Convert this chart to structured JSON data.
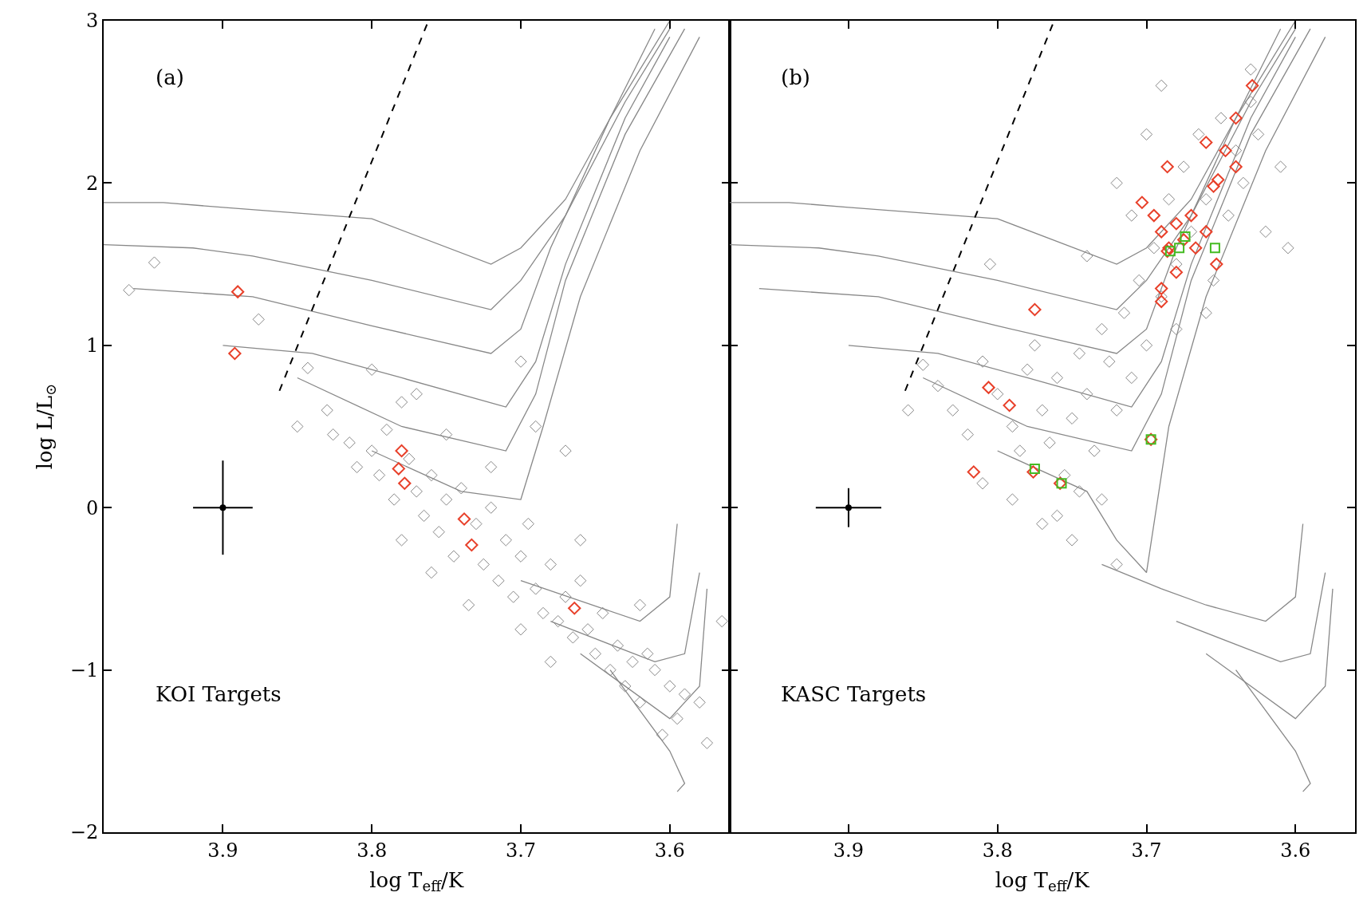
{
  "chart_data": [
    {
      "type": "scatter",
      "xlabel": "log T$_{eff}$/K",
      "ylabel": "log L/L$_{⊙}$",
      "xlim": [
        3.98,
        3.56
      ],
      "ylim": [
        -2,
        3
      ],
      "xticks": [
        3.9,
        3.8,
        3.7,
        3.6
      ],
      "yticks": [
        -2,
        -1,
        0,
        1,
        2,
        3
      ],
      "annotations": [
        "(a)",
        "KOI Targets"
      ],
      "series": [
        {
          "type": "line",
          "color": "#888888",
          "x": [
            3.98,
            3.94,
            3.9,
            3.8,
            3.72,
            3.7,
            3.67,
            3.64,
            3.6
          ],
          "values": [
            1.88,
            1.88,
            1.85,
            1.78,
            1.5,
            1.6,
            1.9,
            2.4,
            3.0
          ]
        },
        {
          "type": "line",
          "color": "#888888",
          "x": [
            3.98,
            3.92,
            3.88,
            3.8,
            3.72,
            3.7,
            3.67,
            3.63,
            3.6
          ],
          "values": [
            1.62,
            1.6,
            1.55,
            1.4,
            1.22,
            1.4,
            1.8,
            2.5,
            2.95
          ]
        },
        {
          "type": "line",
          "color": "#888888",
          "x": [
            3.96,
            3.88,
            3.8,
            3.72,
            3.7,
            3.68,
            3.64,
            3.61
          ],
          "values": [
            1.35,
            1.3,
            1.12,
            0.95,
            1.1,
            1.6,
            2.4,
            2.95
          ]
        },
        {
          "type": "line",
          "color": "#888888",
          "x": [
            3.9,
            3.84,
            3.78,
            3.71,
            3.69,
            3.67,
            3.63,
            3.6
          ],
          "values": [
            1.0,
            0.95,
            0.8,
            0.62,
            0.9,
            1.5,
            2.4,
            2.9
          ]
        },
        {
          "type": "line",
          "color": "#888888",
          "x": [
            3.85,
            3.78,
            3.71,
            3.69,
            3.67,
            3.63,
            3.59
          ],
          "values": [
            0.8,
            0.5,
            0.35,
            0.7,
            1.4,
            2.3,
            2.95
          ]
        },
        {
          "type": "line",
          "color": "#888888",
          "x": [
            3.8,
            3.74,
            3.7,
            3.685,
            3.66,
            3.62,
            3.58
          ],
          "values": [
            0.35,
            0.1,
            0.05,
            0.5,
            1.3,
            2.2,
            2.9
          ]
        },
        {
          "type": "line",
          "color": "#888888",
          "x": [
            3.7,
            3.62,
            3.6,
            3.595
          ],
          "values": [
            -0.45,
            -0.7,
            -0.55,
            -0.1
          ]
        },
        {
          "type": "line",
          "color": "#888888",
          "x": [
            3.68,
            3.61,
            3.59,
            3.58
          ],
          "values": [
            -0.7,
            -0.95,
            -0.9,
            -0.4
          ]
        },
        {
          "type": "line",
          "color": "#888888",
          "x": [
            3.66,
            3.6,
            3.58,
            3.575
          ],
          "values": [
            -0.9,
            -1.3,
            -1.1,
            -0.5
          ]
        },
        {
          "type": "line",
          "color": "#888888",
          "x": [
            3.64,
            3.6,
            3.59,
            3.595
          ],
          "values": [
            -1.0,
            -1.5,
            -1.7,
            -1.75
          ]
        },
        {
          "type": "line",
          "color": "#000000",
          "line_style": "dashed",
          "x": [
            3.862,
            3.762
          ],
          "values": [
            0.72,
            3.0
          ]
        },
        {
          "type": "scatter",
          "color": "#000000",
          "marker": "none",
          "x": [
            3.9
          ],
          "values": [
            0
          ],
          "errors": [
            0.29
          ],
          "xerrors": [
            0.02
          ]
        },
        {
          "type": "scatter",
          "color": "#888888",
          "marker": "diamond",
          "x": [
            3.963,
            3.946,
            3.876,
            3.843,
            3.83,
            3.826,
            3.815,
            3.81,
            3.8,
            3.79,
            3.795,
            3.785,
            3.775,
            3.77,
            3.765,
            3.76,
            3.755,
            3.75,
            3.745,
            3.74,
            3.73,
            3.725,
            3.72,
            3.715,
            3.71,
            3.705,
            3.7,
            3.695,
            3.69,
            3.685,
            3.68,
            3.675,
            3.67,
            3.665,
            3.66,
            3.655,
            3.65,
            3.645,
            3.64,
            3.635,
            3.63,
            3.625,
            3.62,
            3.615,
            3.61,
            3.6,
            3.595,
            3.59,
            3.58,
            3.575,
            3.565,
            3.8,
            3.78,
            3.77,
            3.75,
            3.72,
            3.7,
            3.69,
            3.67,
            3.735,
            3.76,
            3.66,
            3.7,
            3.62,
            3.78,
            3.85,
            3.68,
            3.605
          ],
          "values": [
            1.34,
            1.51,
            1.16,
            0.86,
            0.6,
            0.45,
            0.4,
            0.25,
            0.35,
            0.48,
            0.2,
            0.05,
            0.3,
            0.1,
            -0.05,
            0.2,
            -0.15,
            0.05,
            -0.3,
            0.12,
            -0.1,
            -0.35,
            0.0,
            -0.45,
            -0.2,
            -0.55,
            -0.3,
            -0.1,
            -0.5,
            -0.65,
            -0.35,
            -0.7,
            -0.55,
            -0.8,
            -0.45,
            -0.75,
            -0.9,
            -0.65,
            -1.0,
            -0.85,
            -1.1,
            -0.95,
            -1.2,
            -0.9,
            -1.0,
            -1.1,
            -1.3,
            -1.15,
            -1.2,
            -1.45,
            -0.7,
            0.85,
            0.65,
            0.7,
            0.45,
            0.25,
            0.9,
            0.5,
            0.35,
            -0.6,
            -0.4,
            -0.2,
            -0.75,
            -0.6,
            -0.2,
            0.5,
            -0.95,
            -1.4
          ]
        },
        {
          "type": "scatter",
          "color": "#e8402a",
          "marker": "diamond",
          "x": [
            3.89,
            3.892,
            3.78,
            3.782,
            3.738,
            3.733,
            3.664
          ],
          "values": [
            1.33,
            0.95,
            0.35,
            0.24,
            -0.07,
            -0.23,
            -0.62
          ]
        },
        {
          "type": "scatter",
          "color": "#e8402a",
          "marker": "diamond",
          "x": [
            3.778
          ],
          "values": [
            0.15
          ]
        }
      ]
    },
    {
      "type": "scatter",
      "xlabel": "log T$_{eff}$/K",
      "xlim": [
        3.98,
        3.56
      ],
      "ylim": [
        -2,
        3
      ],
      "xticks": [
        3.9,
        3.8,
        3.7,
        3.6
      ],
      "yticks": [
        -2,
        -1,
        0,
        1,
        2,
        3
      ],
      "tick_labels": "x",
      "annotations": [
        "(b)",
        "KASC Targets"
      ],
      "series": [
        {
          "type": "line",
          "color": "#888888",
          "x": [
            3.98,
            3.94,
            3.9,
            3.8,
            3.72,
            3.7,
            3.67,
            3.64,
            3.6
          ],
          "values": [
            1.88,
            1.88,
            1.85,
            1.78,
            1.5,
            1.6,
            1.9,
            2.4,
            3.0
          ]
        },
        {
          "type": "line",
          "color": "#888888",
          "x": [
            3.98,
            3.92,
            3.88,
            3.8,
            3.72,
            3.7,
            3.67,
            3.63,
            3.6
          ],
          "values": [
            1.62,
            1.6,
            1.55,
            1.4,
            1.22,
            1.4,
            1.8,
            2.5,
            2.95
          ]
        },
        {
          "type": "line",
          "color": "#888888",
          "x": [
            3.96,
            3.88,
            3.8,
            3.72,
            3.7,
            3.68,
            3.64,
            3.61
          ],
          "values": [
            1.35,
            1.3,
            1.12,
            0.95,
            1.1,
            1.6,
            2.4,
            2.95
          ]
        },
        {
          "type": "line",
          "color": "#888888",
          "x": [
            3.9,
            3.84,
            3.78,
            3.71,
            3.69,
            3.67,
            3.63,
            3.6
          ],
          "values": [
            1.0,
            0.95,
            0.8,
            0.62,
            0.9,
            1.5,
            2.4,
            2.9
          ]
        },
        {
          "type": "line",
          "color": "#888888",
          "x": [
            3.85,
            3.78,
            3.71,
            3.69,
            3.67,
            3.63,
            3.59
          ],
          "values": [
            0.8,
            0.5,
            0.35,
            0.7,
            1.4,
            2.3,
            2.95
          ]
        },
        {
          "type": "line",
          "color": "#888888",
          "x": [
            3.8,
            3.74,
            3.72,
            3.7,
            3.685,
            3.66,
            3.62,
            3.58
          ],
          "values": [
            0.35,
            0.1,
            -0.2,
            -0.4,
            0.5,
            1.3,
            2.2,
            2.9
          ]
        },
        {
          "type": "line",
          "color": "#888888",
          "x": [
            3.73,
            3.69,
            3.66,
            3.62,
            3.6,
            3.595
          ],
          "values": [
            -0.35,
            -0.5,
            -0.6,
            -0.7,
            -0.55,
            -0.1
          ]
        },
        {
          "type": "line",
          "color": "#888888",
          "x": [
            3.68,
            3.61,
            3.59,
            3.58
          ],
          "values": [
            -0.7,
            -0.95,
            -0.9,
            -0.4
          ]
        },
        {
          "type": "line",
          "color": "#888888",
          "x": [
            3.66,
            3.6,
            3.58,
            3.575
          ],
          "values": [
            -0.9,
            -1.3,
            -1.1,
            -0.5
          ]
        },
        {
          "type": "line",
          "color": "#888888",
          "x": [
            3.64,
            3.6,
            3.59,
            3.595
          ],
          "values": [
            -1.0,
            -1.5,
            -1.7,
            -1.75
          ]
        },
        {
          "type": "line",
          "color": "#000000",
          "line_style": "dashed",
          "x": [
            3.862,
            3.762
          ],
          "values": [
            0.72,
            3.0
          ]
        },
        {
          "type": "scatter",
          "color": "#000000",
          "marker": "none",
          "x": [
            3.9
          ],
          "values": [
            0
          ],
          "errors": [
            0.12
          ],
          "xerrors": [
            0.022
          ]
        },
        {
          "type": "scatter",
          "color": "#888888",
          "marker": "diamond",
          "x": [
            3.85,
            3.84,
            3.83,
            3.82,
            3.81,
            3.8,
            3.79,
            3.785,
            3.78,
            3.775,
            3.77,
            3.765,
            3.76,
            3.755,
            3.75,
            3.745,
            3.74,
            3.735,
            3.73,
            3.725,
            3.72,
            3.715,
            3.71,
            3.705,
            3.7,
            3.695,
            3.69,
            3.685,
            3.68,
            3.675,
            3.67,
            3.665,
            3.66,
            3.655,
            3.65,
            3.645,
            3.64,
            3.635,
            3.63,
            3.625,
            3.62,
            3.61,
            3.605,
            3.72,
            3.7,
            3.69,
            3.63,
            3.68,
            3.66,
            3.77,
            3.76,
            3.79,
            3.75,
            3.73,
            3.72,
            3.745,
            3.805,
            3.74,
            3.71,
            3.86,
            3.81
          ],
          "values": [
            0.88,
            0.75,
            0.6,
            0.45,
            0.9,
            0.7,
            0.5,
            0.35,
            0.85,
            1.0,
            0.6,
            0.4,
            0.8,
            0.2,
            0.55,
            0.95,
            0.7,
            0.35,
            1.1,
            0.9,
            0.6,
            1.2,
            0.8,
            1.4,
            1.0,
            1.6,
            1.3,
            1.9,
            1.5,
            2.1,
            1.7,
            2.3,
            1.9,
            1.4,
            2.4,
            1.8,
            2.2,
            2.0,
            2.5,
            2.3,
            1.7,
            2.1,
            1.6,
            2.0,
            2.3,
            2.6,
            2.7,
            1.1,
            1.2,
            -0.1,
            -0.05,
            0.05,
            -0.2,
            0.05,
            -0.35,
            0.1,
            1.5,
            1.55,
            1.8,
            0.6,
            0.15
          ]
        },
        {
          "type": "scatter",
          "color": "#e8402a",
          "marker": "diamond",
          "x": [
            3.806,
            3.792,
            3.816
          ],
          "values": [
            0.74,
            0.63,
            0.22
          ]
        },
        {
          "type": "scatter",
          "color": "#e8402a",
          "marker": "diamond",
          "x": [
            3.629,
            3.64,
            3.66,
            3.647,
            3.64,
            3.686,
            3.652,
            3.655,
            3.703,
            3.67,
            3.68,
            3.69,
            3.675,
            3.685,
            3.66,
            3.653,
            3.68,
            3.667,
            3.69,
            3.69,
            3.775,
            3.776,
            3.758,
            3.697,
            3.686,
            3.695
          ],
          "values": [
            2.6,
            2.4,
            2.25,
            2.2,
            2.1,
            2.1,
            2.02,
            1.98,
            1.88,
            1.8,
            1.75,
            1.7,
            1.65,
            1.6,
            1.7,
            1.5,
            1.45,
            1.6,
            1.35,
            1.27,
            1.22,
            0.22,
            0.15,
            0.42,
            1.58,
            1.8
          ]
        },
        {
          "type": "scatter",
          "color": "#44bb22",
          "marker": "square",
          "x": [
            3.775,
            3.757,
            3.697,
            3.684,
            3.674,
            3.654,
            3.678
          ],
          "values": [
            0.24,
            0.15,
            0.42,
            1.58,
            1.67,
            1.6,
            1.6
          ]
        }
      ]
    }
  ]
}
